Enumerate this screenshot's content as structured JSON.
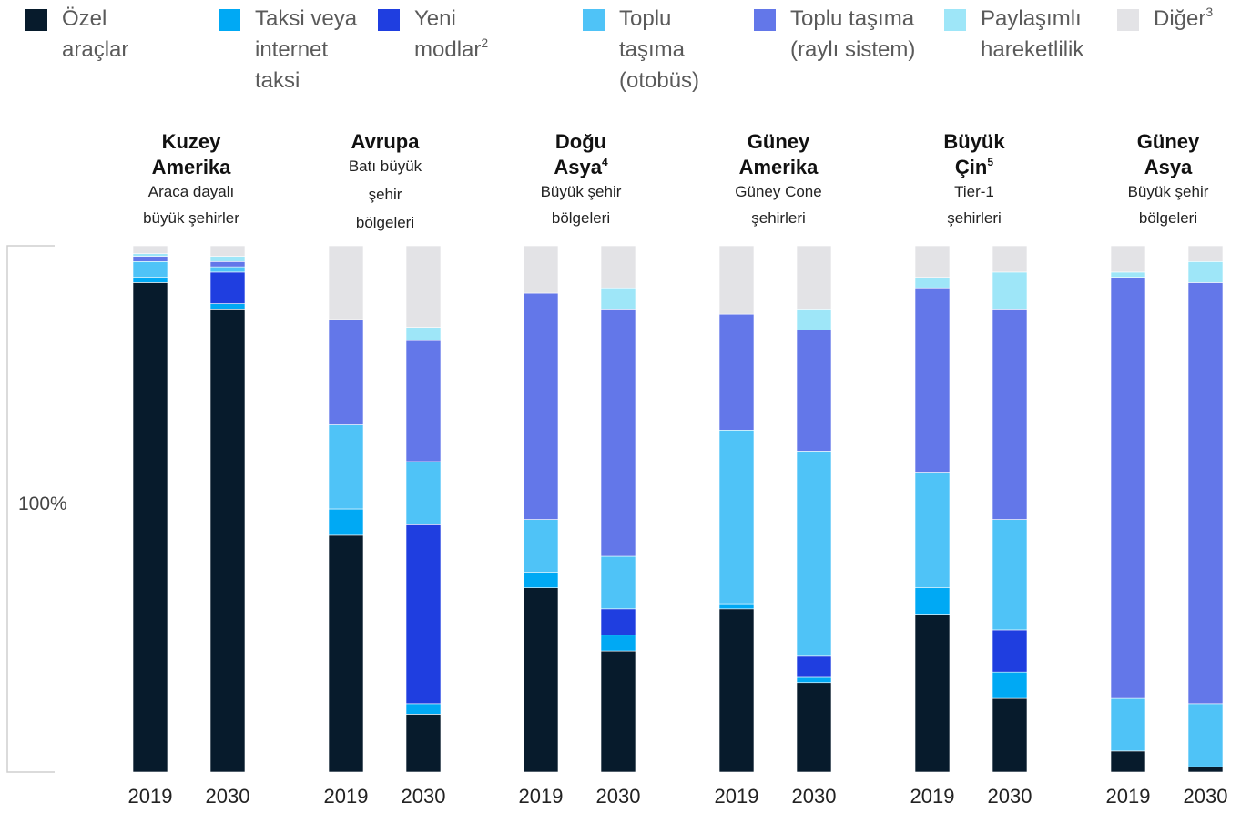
{
  "chart_data": {
    "type": "bar",
    "stacked": true,
    "y_axis_label": "100%",
    "legend": [
      {
        "key": "private",
        "lines": [
          "Özel",
          "araçlar"
        ],
        "sup": "",
        "color": "#071b2c"
      },
      {
        "key": "taxi",
        "lines": [
          "Taksi veya",
          "internet",
          "taksi"
        ],
        "sup": "",
        "color": "#00a9f4"
      },
      {
        "key": "new_modes",
        "lines": [
          "Yeni",
          "modlar"
        ],
        "sup": "2",
        "color": "#1f3ee0"
      },
      {
        "key": "bus",
        "lines": [
          "Toplu",
          "taşıma",
          "(otobüs)"
        ],
        "sup": "",
        "color": "#4fc3f7"
      },
      {
        "key": "rail",
        "lines": [
          "Toplu taşıma",
          "(raylı sistem)"
        ],
        "sup": "",
        "color": "#6377e9"
      },
      {
        "key": "shared",
        "lines": [
          "Paylaşımlı",
          "hareketlilik"
        ],
        "sup": "",
        "color": "#9ee6f8"
      },
      {
        "key": "other",
        "lines": [
          "Diğer"
        ],
        "sup": "3",
        "color": "#e3e3e6"
      }
    ],
    "regions": [
      {
        "name_lines": [
          "Kuzey",
          "Amerika"
        ],
        "sup": "",
        "sub_lines": [
          "Araca dayalı",
          "büyük şehirler"
        ],
        "bars": [
          {
            "year": "2019",
            "values": {
              "private": 93,
              "taxi": 1,
              "new_modes": 0,
              "bus": 3,
              "rail": 1,
              "shared": 0.5,
              "other": 1.5
            }
          },
          {
            "year": "2030",
            "values": {
              "private": 88,
              "taxi": 1,
              "new_modes": 6,
              "bus": 1,
              "rail": 1,
              "shared": 1,
              "other": 2
            }
          }
        ]
      },
      {
        "name_lines": [
          "Avrupa"
        ],
        "sup": "",
        "sub_lines": [
          "Batı büyük",
          "şehir",
          "bölgeleri"
        ],
        "bars": [
          {
            "year": "2019",
            "values": {
              "private": 45,
              "taxi": 5,
              "new_modes": 0,
              "bus": 16,
              "rail": 20,
              "shared": 0,
              "other": 14
            }
          },
          {
            "year": "2030",
            "values": {
              "private": 11,
              "taxi": 2,
              "new_modes": 34,
              "bus": 12,
              "rail": 23,
              "shared": 2.5,
              "other": 15.5
            }
          }
        ]
      },
      {
        "name_lines": [
          "Doğu",
          "Asya"
        ],
        "sup": "4",
        "sub_lines": [
          "Büyük şehir",
          "bölgeleri"
        ],
        "bars": [
          {
            "year": "2019",
            "values": {
              "private": 35,
              "taxi": 3,
              "new_modes": 0,
              "bus": 10,
              "rail": 43,
              "shared": 0,
              "other": 9
            }
          },
          {
            "year": "2030",
            "values": {
              "private": 23,
              "taxi": 3,
              "new_modes": 5,
              "bus": 10,
              "rail": 47,
              "shared": 4,
              "other": 8
            }
          }
        ]
      },
      {
        "name_lines": [
          "Güney",
          "Amerika"
        ],
        "sup": "",
        "sub_lines": [
          "Güney Cone",
          "şehirleri"
        ],
        "bars": [
          {
            "year": "2019",
            "values": {
              "private": 31,
              "taxi": 1,
              "new_modes": 0,
              "bus": 33,
              "rail": 22,
              "shared": 0,
              "other": 13
            }
          },
          {
            "year": "2030",
            "values": {
              "private": 17,
              "taxi": 1,
              "new_modes": 4,
              "bus": 39,
              "rail": 23,
              "shared": 4,
              "other": 12
            }
          }
        ]
      },
      {
        "name_lines": [
          "Büyük",
          "Çin"
        ],
        "sup": "5",
        "sub_lines": [
          "Tier-1",
          "şehirleri"
        ],
        "bars": [
          {
            "year": "2019",
            "values": {
              "private": 30,
              "taxi": 5,
              "new_modes": 0,
              "bus": 22,
              "rail": 35,
              "shared": 2,
              "other": 6
            }
          },
          {
            "year": "2030",
            "values": {
              "private": 14,
              "taxi": 5,
              "new_modes": 8,
              "bus": 21,
              "rail": 40,
              "shared": 7,
              "other": 5
            }
          }
        ]
      },
      {
        "name_lines": [
          "Güney",
          "Asya"
        ],
        "sup": "",
        "sub_lines": [
          "Büyük şehir",
          "bölgeleri"
        ],
        "bars": [
          {
            "year": "2019",
            "values": {
              "private": 4,
              "taxi": 0,
              "new_modes": 0,
              "bus": 10,
              "rail": 80,
              "shared": 1,
              "other": 5
            }
          },
          {
            "year": "2030",
            "values": {
              "private": 1,
              "taxi": 0,
              "new_modes": 0,
              "bus": 12,
              "rail": 80,
              "shared": 4,
              "other": 3
            }
          }
        ]
      }
    ]
  }
}
